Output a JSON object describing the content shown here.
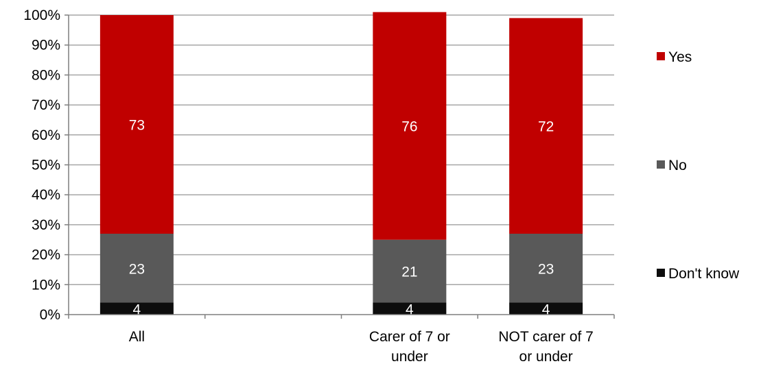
{
  "chart_data": {
    "type": "bar",
    "stacked": true,
    "percent_stacked": true,
    "categories": [
      [
        "All"
      ],
      [
        ""
      ],
      [
        "Carer of 7 or",
        "under"
      ],
      [
        "NOT carer of 7",
        "or under"
      ]
    ],
    "series": [
      {
        "name": "Don't know",
        "color": "#0d0d0d",
        "values": [
          4,
          null,
          4,
          4
        ],
        "labels": [
          "4",
          "",
          "4",
          "4"
        ]
      },
      {
        "name": "No",
        "color": "#595959",
        "values": [
          23,
          null,
          21,
          23
        ],
        "labels": [
          "23",
          "",
          "21",
          "23"
        ]
      },
      {
        "name": "Yes",
        "color": "#c00000",
        "values": [
          73,
          null,
          76,
          72
        ],
        "labels": [
          "73",
          "",
          "76",
          "72"
        ]
      }
    ],
    "y_ticks": [
      "0%",
      "10%",
      "20%",
      "30%",
      "40%",
      "50%",
      "60%",
      "70%",
      "80%",
      "90%",
      "100%"
    ],
    "ylim": [
      0,
      100
    ],
    "grid": true,
    "legend": {
      "placement": "right",
      "order": [
        "Yes",
        "No",
        "Don't know"
      ]
    },
    "title": "",
    "xlabel": "",
    "ylabel": ""
  }
}
